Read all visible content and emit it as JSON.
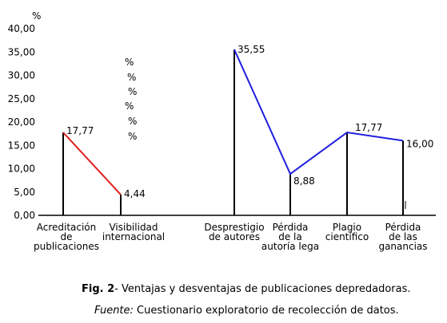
{
  "chart_data": {
    "type": "line",
    "ylabel": "%",
    "ylim": [
      0,
      40
    ],
    "yticks": [
      "0,00",
      "5,00",
      "10,00",
      "15,00",
      "20,00",
      "25,00",
      "30,00",
      "35,00",
      "40,00"
    ],
    "categories": [
      [
        "Acreditación",
        "de",
        "publicaciones"
      ],
      [
        "Visibilidad",
        "internacional"
      ],
      [
        "Desprestigio",
        "de autores"
      ],
      [
        "Pérdida",
        "de la",
        "autoría lega"
      ],
      [
        "Plagio",
        "científico"
      ],
      [
        "Pérdida",
        "de las",
        "ganancias"
      ]
    ],
    "series": [
      {
        "color": "#e02020",
        "points": [
          {
            "i": 0,
            "y": 17.77,
            "label": "17,77"
          },
          {
            "i": 1,
            "y": 4.44,
            "label": "4,44"
          }
        ]
      },
      {
        "color": "#1f1fe0",
        "points": [
          {
            "i": 2,
            "y": 35.55,
            "label": "35,55"
          },
          {
            "i": 3,
            "y": 8.88,
            "label": "8,88"
          },
          {
            "i": 4,
            "y": 17.77,
            "label": "17,77"
          },
          {
            "i": 5,
            "y": 16.0,
            "label": "16,00"
          }
        ]
      }
    ],
    "stray_percent_marks": [
      "%",
      "%",
      "%",
      "%",
      "%",
      "%"
    ],
    "grid": false
  },
  "caption": {
    "fig_label": "Fig. 2",
    "fig_text": "- Ventajas y desventajas de publicaciones depredadoras.",
    "source_label": "Fuente:",
    "source_text": " Cuestionario exploratorio de recolección de datos."
  }
}
